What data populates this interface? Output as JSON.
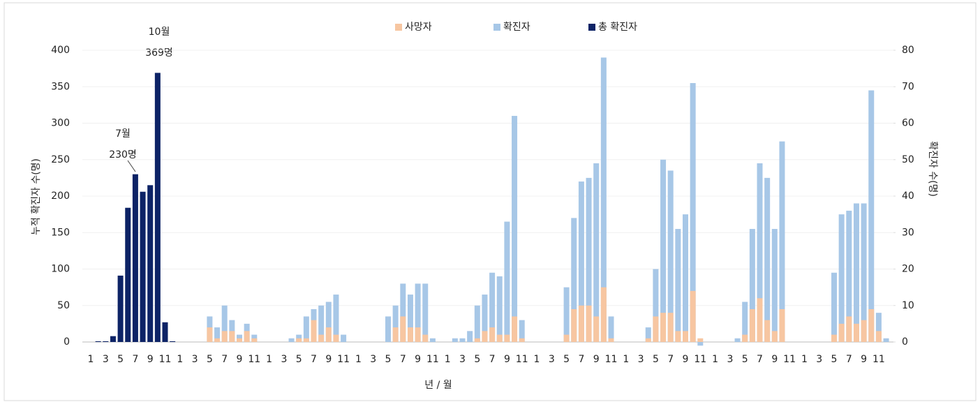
{
  "chart_data": {
    "type": "bar",
    "x_label": "년 / 월",
    "y_label": "누적 확진자 수(명)",
    "y2_label": "확진자 수(명)",
    "annotations": [
      "10월",
      "369명",
      "7월",
      "230명"
    ],
    "categories": [
      "1",
      null,
      "3",
      null,
      "5",
      null,
      "7",
      null,
      "9",
      null,
      "11",
      null,
      "1",
      null,
      "3",
      null,
      "5",
      null,
      "7",
      null,
      "9",
      null,
      "11",
      null,
      "1",
      null,
      "3",
      null,
      "5",
      null,
      "7",
      null,
      "9",
      null,
      "11",
      null,
      "1",
      null,
      "3",
      null,
      "5",
      null,
      "7",
      null,
      "9",
      null,
      "11",
      null,
      "1",
      null,
      "3",
      null,
      "5",
      null,
      "7",
      null,
      "9",
      null,
      "11",
      null,
      "1",
      null,
      "3",
      null,
      "5",
      null,
      "7",
      null,
      "9",
      null,
      "11",
      null,
      "1",
      null,
      "3",
      null,
      "5",
      null,
      "7",
      null,
      "9",
      null,
      "11",
      null,
      "1",
      null,
      "3",
      null,
      "5",
      null,
      "7",
      null,
      "9",
      null,
      "11",
      null,
      "1",
      null,
      "3",
      null,
      "5",
      null,
      "7",
      null,
      "9",
      null,
      "11",
      null
    ],
    "series": [
      {
        "name": "사망자",
        "color": "#f7c6a1",
        "axis": "y2",
        "values": [
          null,
          null,
          null,
          null,
          null,
          null,
          null,
          null,
          null,
          null,
          null,
          null,
          0,
          0,
          0,
          0,
          4,
          1,
          3,
          3,
          1,
          3,
          1,
          0,
          0,
          0,
          0,
          0,
          1,
          1,
          6,
          2,
          4,
          2,
          0,
          0,
          0,
          0,
          0,
          0,
          0,
          4,
          7,
          4,
          4,
          2,
          0,
          0,
          0,
          0,
          0,
          0,
          1,
          3,
          4,
          2,
          2,
          7,
          1,
          0,
          0,
          0,
          0,
          0,
          2,
          9,
          10,
          10,
          7,
          15,
          1,
          0,
          0,
          0,
          0,
          1,
          7,
          8,
          8,
          3,
          3,
          14,
          1,
          0,
          0,
          0,
          0,
          0,
          2,
          9,
          12,
          6,
          3,
          9,
          0,
          0,
          0,
          0,
          0,
          0,
          2,
          5,
          7,
          5,
          6,
          9,
          3,
          0
        ]
      },
      {
        "name": "확진자",
        "color": "#a7c7e7",
        "axis": "y2",
        "values": [
          null,
          null,
          null,
          null,
          null,
          null,
          null,
          null,
          null,
          null,
          null,
          null,
          0,
          0,
          0,
          0,
          7,
          4,
          10,
          6,
          2,
          5,
          2,
          0,
          0,
          0,
          0,
          1,
          2,
          7,
          9,
          10,
          11,
          13,
          2,
          0,
          0,
          0,
          0,
          0,
          7,
          10,
          16,
          13,
          16,
          16,
          1,
          0,
          0,
          1,
          1,
          3,
          10,
          13,
          19,
          18,
          33,
          62,
          6,
          0,
          0,
          0,
          0,
          0,
          15,
          34,
          44,
          45,
          49,
          78,
          7,
          0,
          0,
          0,
          0,
          4,
          20,
          50,
          47,
          31,
          35,
          71,
          -1,
          0,
          0,
          0,
          0,
          1,
          11,
          31,
          49,
          45,
          31,
          55,
          0,
          0,
          0,
          0,
          0,
          0,
          19,
          35,
          36,
          38,
          38,
          69,
          8,
          1
        ]
      },
      {
        "name": "총 확진자",
        "color": "#0d2366",
        "axis": "y",
        "values": [
          0,
          1,
          1,
          8,
          91,
          184,
          230,
          206,
          215,
          369,
          27,
          1,
          null,
          null,
          null,
          null,
          null,
          null,
          null,
          null,
          null,
          null,
          null,
          null,
          null,
          null,
          null,
          null,
          null,
          null,
          null,
          null,
          null,
          null,
          null,
          null,
          null,
          null,
          null,
          null,
          null,
          null,
          null,
          null,
          null,
          null,
          null,
          null,
          null,
          null,
          null,
          null,
          null,
          null,
          null,
          null,
          null,
          null,
          null,
          null,
          null,
          null,
          null,
          null,
          null,
          null,
          null,
          null,
          null,
          null,
          null,
          null,
          null,
          null,
          null,
          null,
          null,
          null,
          null,
          null,
          null,
          null,
          null,
          null,
          null,
          null,
          null,
          null,
          null,
          null,
          null,
          null,
          null,
          null,
          null,
          null,
          null,
          null,
          null,
          null,
          null,
          null,
          null,
          null,
          null,
          null,
          null,
          null
        ]
      }
    ],
    "ylim": [
      0,
      400
    ],
    "yticks": [
      0,
      50,
      100,
      150,
      200,
      250,
      300,
      350,
      400
    ],
    "y2lim": [
      0,
      80
    ],
    "y2ticks": [
      0,
      10,
      20,
      30,
      40,
      50,
      60,
      70,
      80
    ],
    "grid": true,
    "legend": "top"
  }
}
